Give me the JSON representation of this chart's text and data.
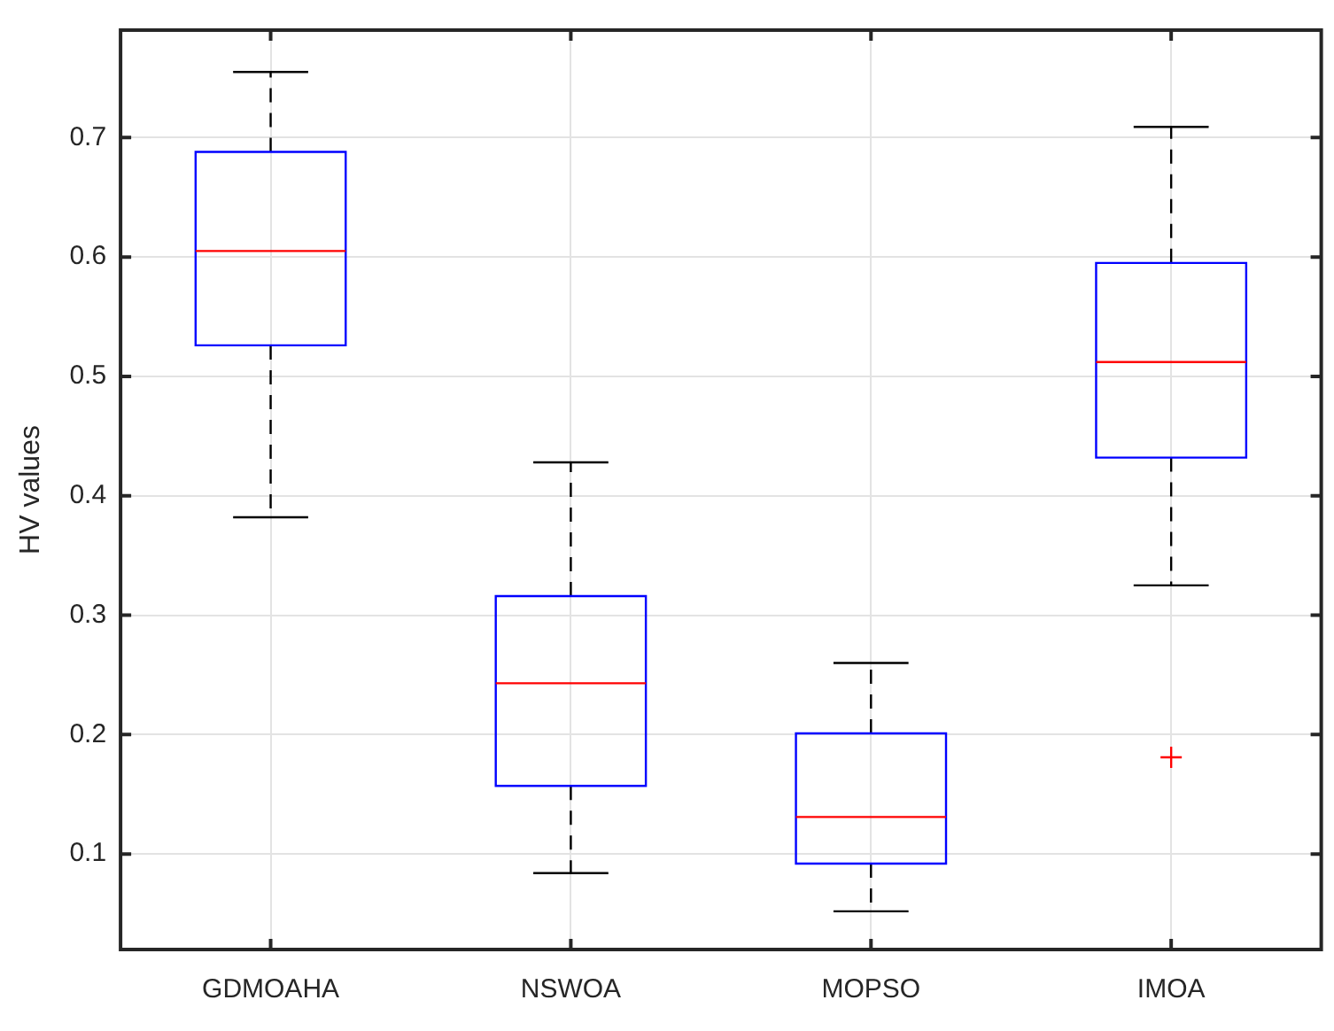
{
  "chart_data": {
    "type": "box",
    "ylabel": "HV values",
    "categories": [
      "GDMOAHA",
      "NSWOA",
      "MOPSO",
      "IMOA"
    ],
    "boxes": [
      {
        "low": 0.382,
        "q1": 0.526,
        "median": 0.605,
        "q3": 0.688,
        "high": 0.755
      },
      {
        "low": 0.084,
        "q1": 0.157,
        "median": 0.243,
        "q3": 0.316,
        "high": 0.428
      },
      {
        "low": 0.052,
        "q1": 0.092,
        "median": 0.131,
        "q3": 0.201,
        "high": 0.26
      },
      {
        "low": 0.325,
        "q1": 0.432,
        "median": 0.512,
        "q3": 0.595,
        "high": 0.709,
        "outliers": [
          0.181
        ]
      }
    ],
    "color": "#0000ff",
    "ylim": [
      0.02,
      0.79
    ],
    "yticks": [
      0.1,
      0.2,
      0.3,
      0.4,
      0.5,
      0.6,
      0.7
    ],
    "grid": true,
    "marker": "cross",
    "line_style": "dashed"
  }
}
